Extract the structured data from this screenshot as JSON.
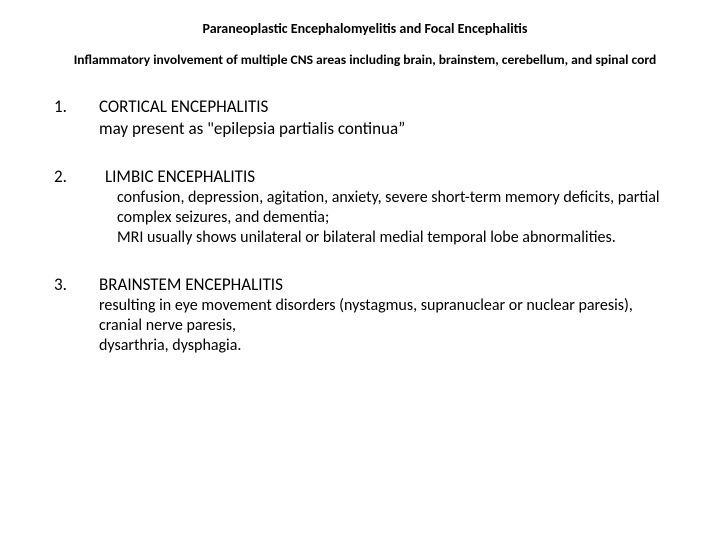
{
  "title": "Paraneoplastic Encephalomyelitis and Focal Encephalitis",
  "subtitle": "Inflammatory involvement of multiple CNS areas including brain, brainstem, cerebellum, and spinal cord",
  "items": [
    {
      "number": "1.",
      "heading": "CORTICAL ENCEPHALITIS",
      "sub": "may present as \"epilepsia partialis continua”",
      "desc": []
    },
    {
      "number": "2.",
      "heading": "LIMBIC ENCEPHALITIS",
      "sub": "",
      "desc": [
        "confusion, depression, agitation, anxiety, severe short-term memory deficits, partial complex seizures, and dementia;",
        "MRI usually shows unilateral or bilateral medial temporal lobe abnormalities."
      ]
    },
    {
      "number": "3.",
      "heading": "BRAINSTEM ENCEPHALITIS",
      "sub": "",
      "desc3": [
        " resulting in eye movement disorders (nystagmus, supranuclear or nuclear paresis),",
        " cranial nerve paresis,",
        "dysarthria, dysphagia."
      ]
    }
  ],
  "colors": {
    "background": "#ffffff",
    "text": "#000000"
  },
  "fonts": {
    "title_size": 14,
    "subtitle_size": 13.5,
    "body_size": 17,
    "desc_size": 16
  }
}
